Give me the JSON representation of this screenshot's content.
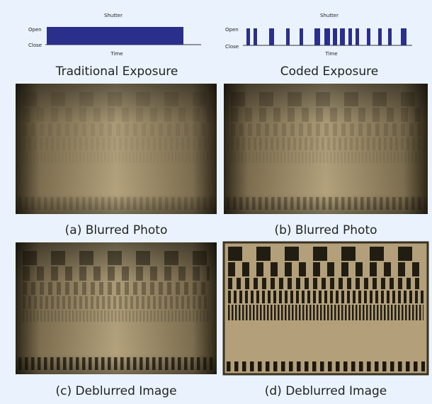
{
  "diagrams": [
    {
      "shutter_label": "Shutter",
      "open_label": "Open",
      "close_label": "Close",
      "time_label": "Time",
      "title": "Traditional Exposure"
    },
    {
      "shutter_label": "Shutter",
      "open_label": "Open",
      "close_label": "Close",
      "time_label": "Time",
      "title": "Coded Exposure"
    }
  ],
  "panels": [
    {
      "caption": "(a) Blurred Photo"
    },
    {
      "caption": "(b) Blurred Photo"
    },
    {
      "caption": "(c) Deblurred Image"
    },
    {
      "caption": "(d) Deblurred Image"
    }
  ]
}
